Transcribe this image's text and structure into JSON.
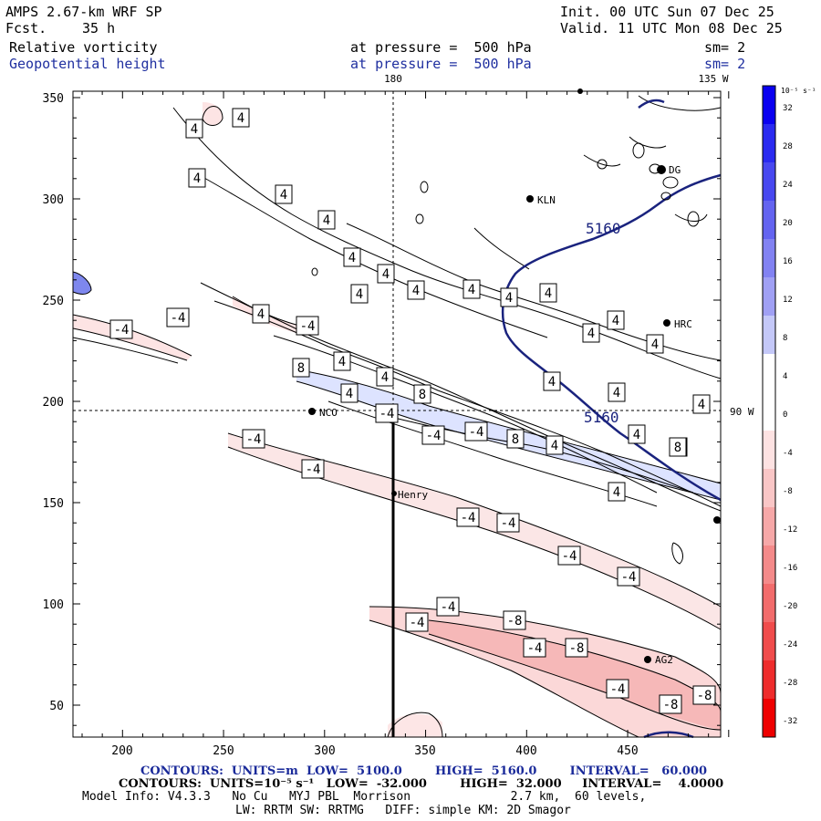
{
  "header": {
    "model": "AMPS 2.67-km WRF SP",
    "fcst_label": "Fcst.",
    "fcst_value": "35 h",
    "init": "Init. 00 UTC Sun 07 Dec 25",
    "valid": "Valid. 11 UTC Mon 08 Dec 25",
    "field1": "Relative vorticity",
    "field2": "Geopotential height",
    "pressure1": "at pressure =  500 hPa",
    "pressure2": "at pressure =  500 hPa",
    "sm1": "sm= 2",
    "sm2": "sm= 2"
  },
  "map": {
    "lon_label_top": "180",
    "lon_label_right_top": "135 W",
    "lat_label_right": "90 W",
    "x_ticks": [
      "200",
      "250",
      "300",
      "350",
      "400",
      "450"
    ],
    "y_ticks": [
      "350",
      "300",
      "250",
      "200",
      "150",
      "100",
      "50"
    ],
    "stations": [
      "KLN",
      "HRC",
      "NCO",
      "Henry",
      "AG2",
      "DG"
    ],
    "height_contour_labels": [
      "5160",
      "5160"
    ],
    "vorticity_labels": [
      "4",
      "4",
      "4",
      "4",
      "4",
      "4",
      "4",
      "4",
      "4",
      "4",
      "4",
      "4",
      "4",
      "4",
      "4",
      "4",
      "4",
      "4",
      "4",
      "4",
      "4",
      "4",
      "4",
      "4",
      "4",
      "4",
      "8",
      "8",
      "8",
      "8",
      "-4",
      "-4",
      "-4",
      "-4",
      "-4",
      "-4",
      "-4",
      "-4",
      "-4",
      "-4",
      "-4",
      "-4",
      "-4",
      "-4",
      "-4",
      "-4",
      "-8",
      "-8",
      "-8",
      "-8"
    ],
    "colors": {
      "height_contour": "#1a237e",
      "positive_fill": "#dde3ff",
      "negative_fill": "#fbdcdc",
      "strong_negative_fill": "#f6b8b8"
    }
  },
  "colorbar": {
    "unit": "10⁻⁵ s⁻¹",
    "labels": [
      "32",
      "28",
      "24",
      "20",
      "16",
      "12",
      "8",
      "4",
      "0",
      "-4",
      "-8",
      "-12",
      "-16",
      "-20",
      "-24",
      "-28",
      "-32"
    ],
    "colors": [
      "#0a00f0",
      "#2a2af0",
      "#4848f0",
      "#6464f0",
      "#8282f2",
      "#a0a0f4",
      "#c4c8f8",
      "#ffffff",
      "#ffffff",
      "#fde2e2",
      "#f9c6c6",
      "#f6a8a8",
      "#f48a8a",
      "#f26c6c",
      "#f04c4c",
      "#ee2c2c",
      "#ee0000"
    ]
  },
  "footer": {
    "line1": "CONTOURS:  UNITS=m  LOW=  5100.0        HIGH=  5160.0        INTERVAL=   60.000",
    "line2": "CONTOURS:  UNITS=10⁻⁵ s⁻¹   LOW=  -32.000        HIGH=  32.000     INTERVAL=    4.0000",
    "line3": "Model Info: V4.3.3   No Cu   MYJ PBL  Morrison              2.7 km,  60 levels,",
    "line4": "LW: RRTM SW: RRTMG   DIFF: simple KM: 2D Smagor"
  }
}
